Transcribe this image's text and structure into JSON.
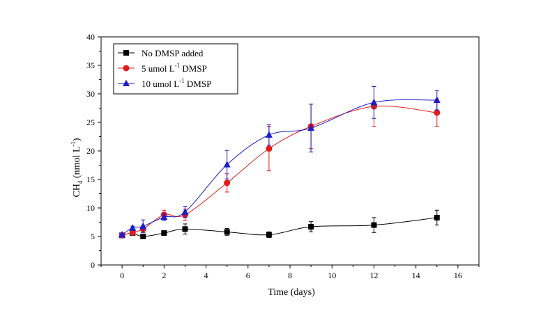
{
  "chart_data": {
    "type": "line",
    "xlabel": "Time (days)",
    "ylabel": {
      "text": "CH",
      "subscript": "4",
      "unit_prefix": " (nmol L",
      "superscript": "-1",
      "unit_suffix": ")"
    },
    "xlim": [
      -1,
      17
    ],
    "ylim": [
      0,
      40
    ],
    "xticks": [
      0,
      2,
      4,
      6,
      8,
      10,
      12,
      14,
      16
    ],
    "yticks": [
      0,
      5,
      10,
      15,
      20,
      25,
      30,
      35,
      40
    ],
    "grid": false,
    "legend_position": "top-left",
    "series": [
      {
        "name": "No DMSP added",
        "legend": {
          "text": "No DMSP added",
          "superscript": "",
          "suffix": ""
        },
        "color": "#000000",
        "marker": "square",
        "x": [
          0,
          0.5,
          1,
          2,
          3,
          5,
          7,
          9,
          12,
          15
        ],
        "y": [
          5.2,
          5.6,
          5.0,
          5.6,
          6.3,
          5.8,
          5.3,
          6.7,
          7.0,
          8.3
        ],
        "err": [
          0.2,
          0.2,
          0.2,
          0.4,
          0.9,
          0.6,
          0.5,
          0.9,
          1.3,
          1.3
        ]
      },
      {
        "name": "5 umol L-1 DMSP",
        "legend": {
          "text": "5 umol L",
          "superscript": "-1",
          "suffix": " DMSP"
        },
        "color": "#e21a1c",
        "marker": "circle",
        "x": [
          0,
          0.5,
          1,
          2,
          3,
          5,
          7,
          9,
          12,
          15
        ],
        "y": [
          5.2,
          5.7,
          6.3,
          8.8,
          8.8,
          14.4,
          20.4,
          24.3,
          27.8,
          26.7
        ],
        "err": [
          0.2,
          0.4,
          0.6,
          0.8,
          1.0,
          1.6,
          3.9,
          3.9,
          3.5,
          2.4
        ]
      },
      {
        "name": "10 umol L-1 DMSP",
        "legend": {
          "text": "10 umol L",
          "superscript": "-1",
          "suffix": " DMSP"
        },
        "color": "#1c1cc8",
        "marker": "triangle",
        "x": [
          0,
          0.5,
          1,
          2,
          3,
          5,
          7,
          9,
          12,
          15
        ],
        "y": [
          5.3,
          6.5,
          6.8,
          8.4,
          9.3,
          17.6,
          22.8,
          24.0,
          28.5,
          28.9
        ],
        "err": [
          0.2,
          0.3,
          1.1,
          0.6,
          1.0,
          2.5,
          1.8,
          4.2,
          2.8,
          1.7
        ]
      }
    ]
  }
}
